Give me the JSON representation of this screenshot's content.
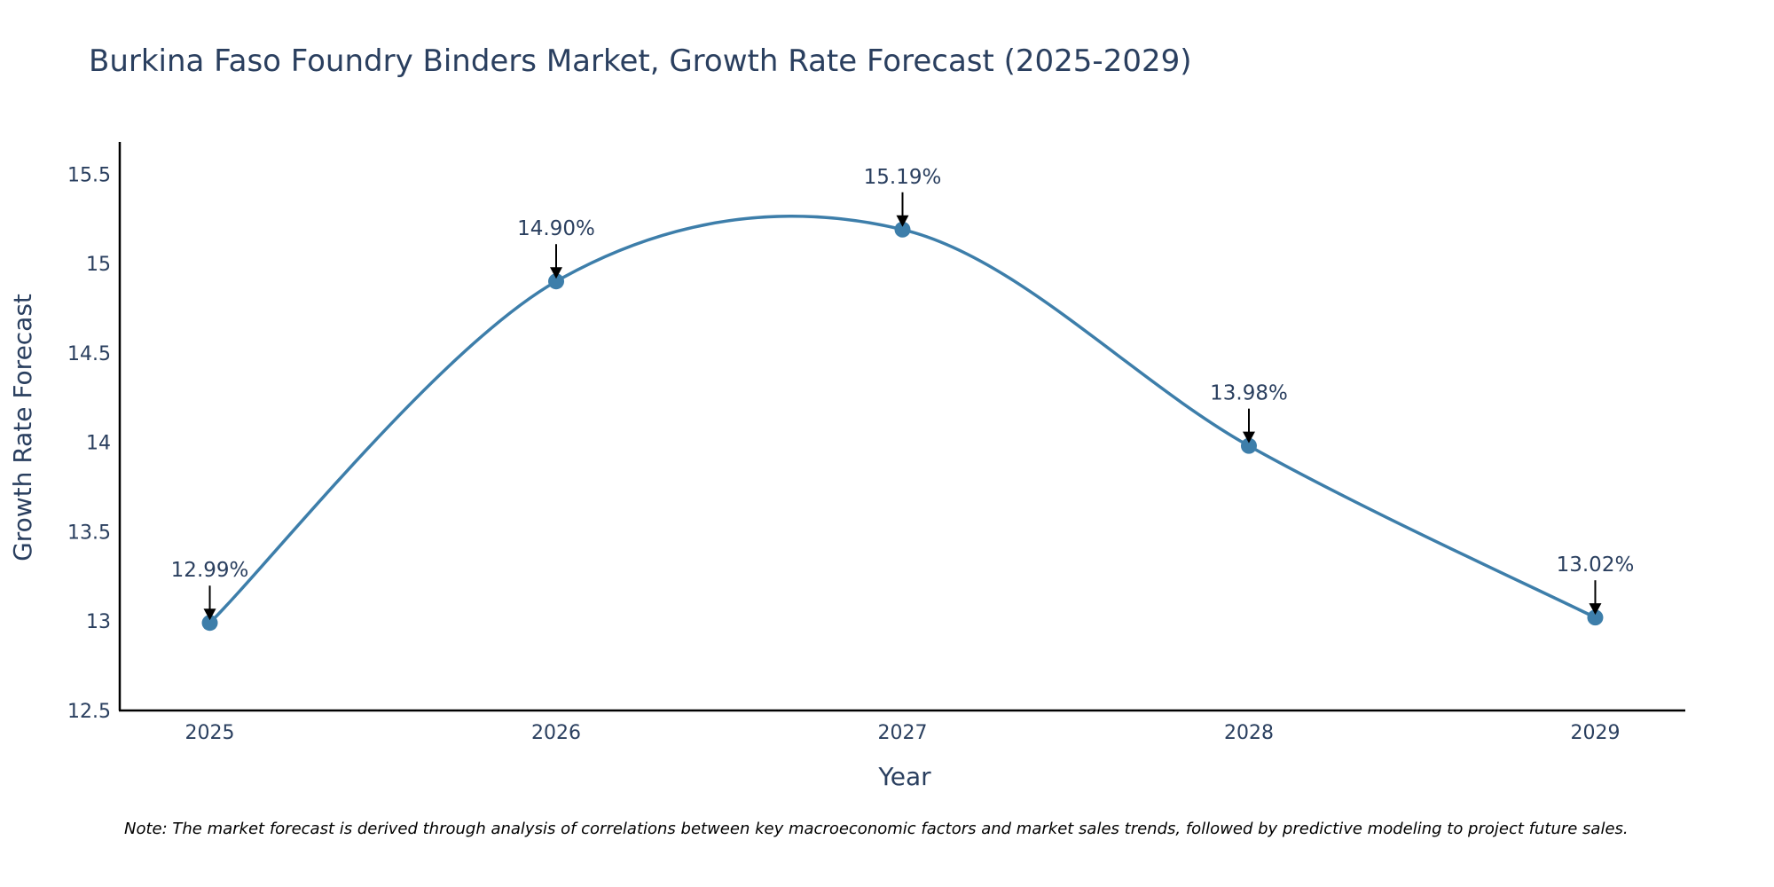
{
  "chart_data": {
    "type": "line",
    "title": "Burkina Faso Foundry Binders Market, Growth Rate Forecast (2025-2029)",
    "xlabel": "Year",
    "ylabel": "Growth Rate Forecast",
    "categories": [
      "2025",
      "2026",
      "2027",
      "2028",
      "2029"
    ],
    "x": [
      2025,
      2026,
      2027,
      2028,
      2029
    ],
    "values": [
      12.99,
      14.9,
      15.19,
      13.98,
      13.02
    ],
    "data_labels": [
      "12.99%",
      "14.90%",
      "15.19%",
      "13.98%",
      "13.02%"
    ],
    "ylim": [
      12.5,
      15.68
    ],
    "xlim": [
      2024.74,
      2029.26
    ],
    "y_ticks": [
      12.5,
      13,
      13.5,
      14,
      14.5,
      15,
      15.5
    ],
    "y_tick_labels": [
      "12.5",
      "13",
      "13.5",
      "14",
      "14.5",
      "15",
      "15.5"
    ],
    "line_shape": "spline",
    "grid": false,
    "annotation_arrows": true,
    "note": "Note: The market forecast is derived through analysis of correlations between key macroeconomic factors and market sales trends, followed by predictive modeling to project future sales.",
    "colors": {
      "line": "#3d7eaa",
      "marker": "#3d7eaa",
      "text": "#2a3f5f",
      "axis": "#000000",
      "arrow": "#000000"
    }
  }
}
